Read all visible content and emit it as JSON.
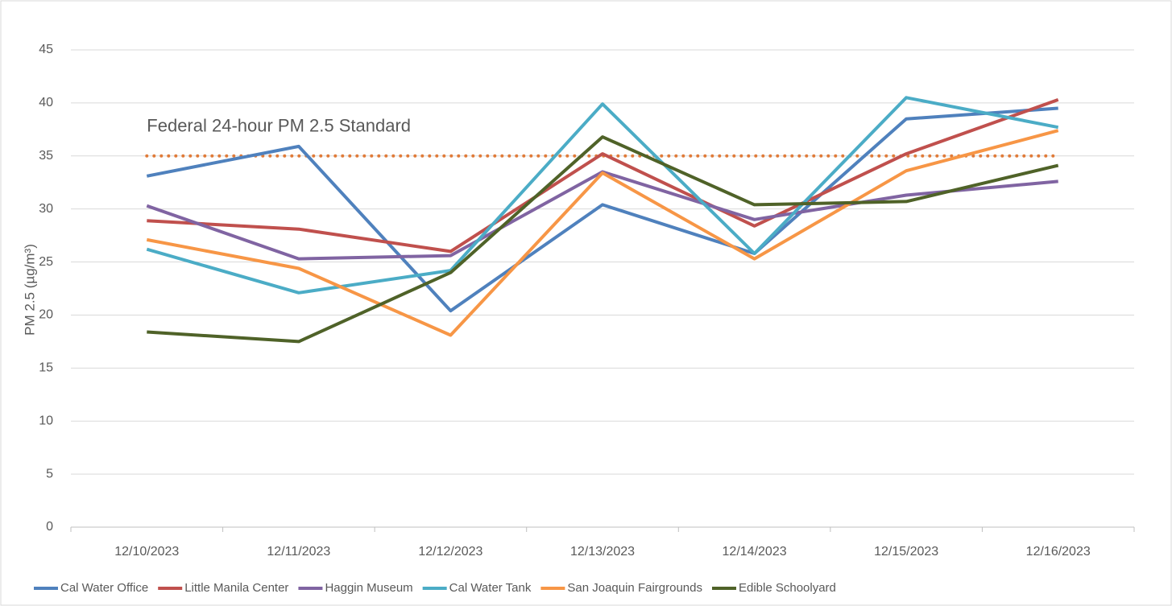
{
  "chart_data": {
    "type": "line",
    "y_label": "PM 2.5 (µg/m³)",
    "categories": [
      "12/10/2023",
      "12/11/2023",
      "12/12/2023",
      "12/13/2023",
      "12/14/2023",
      "12/15/2023",
      "12/16/2023"
    ],
    "series": [
      {
        "name": "Cal Water Office",
        "color": "#4F81BD",
        "values": [
          33.1,
          35.9,
          20.4,
          30.4,
          25.8,
          38.5,
          39.5
        ]
      },
      {
        "name": "Little Manila Center",
        "color": "#C0504D",
        "values": [
          28.9,
          28.1,
          26.0,
          35.2,
          28.4,
          35.2,
          40.3
        ]
      },
      {
        "name": "Haggin Museum",
        "color": "#8064A2",
        "values": [
          30.3,
          25.3,
          25.6,
          33.5,
          29.0,
          31.3,
          32.6
        ]
      },
      {
        "name": "Cal Water Tank",
        "color": "#4BACC6",
        "values": [
          26.2,
          22.1,
          24.2,
          39.9,
          25.8,
          40.5,
          37.7
        ]
      },
      {
        "name": "San Joaquin Fairgrounds",
        "color": "#F79646",
        "values": [
          27.1,
          24.4,
          18.1,
          33.4,
          25.3,
          33.6,
          37.4
        ]
      },
      {
        "name": "Edible Schoolyard",
        "color": "#4F6228",
        "values": [
          18.4,
          17.5,
          24.0,
          36.8,
          30.4,
          30.7,
          34.1
        ]
      }
    ],
    "reference_line": {
      "value": 35,
      "label": "Federal 24-hour PM 2.5 Standard",
      "color": "#E07B39"
    },
    "ylim": [
      0,
      45
    ],
    "yticks": [
      0,
      5,
      10,
      15,
      20,
      25,
      30,
      35,
      40,
      45
    ],
    "grid": true,
    "legend": "bottom"
  }
}
